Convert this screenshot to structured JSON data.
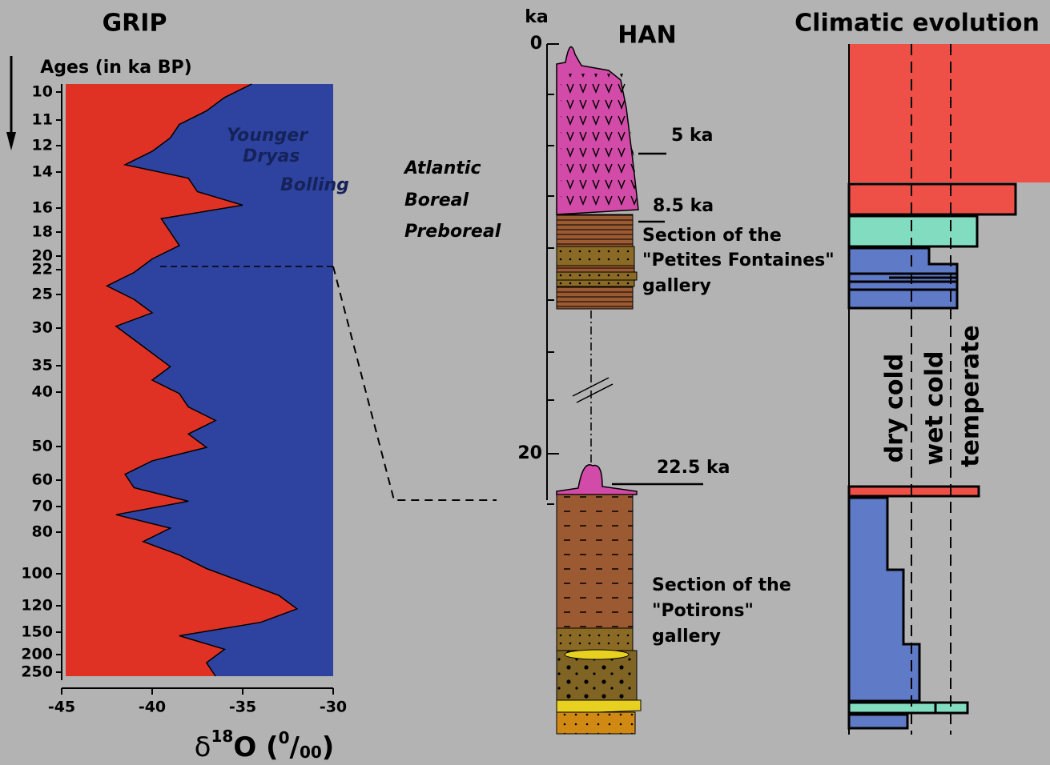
{
  "grip": {
    "title": "GRIP",
    "age_axis_label": "Ages (in ka BP)",
    "age_ticks": [
      10,
      11,
      12,
      14,
      16,
      18,
      20,
      22,
      25,
      30,
      35,
      40,
      50,
      60,
      70,
      80,
      100,
      120,
      150,
      200,
      250
    ],
    "xlim": [
      -45,
      -30
    ],
    "xticks": [
      -45,
      -40,
      -35,
      -30
    ],
    "x_label": {
      "base": "δ",
      "sup": "18",
      "main": "O (",
      "num": "0",
      "sep": "/",
      "den": "00",
      "close": ")"
    },
    "annotations": [
      "Younger",
      "Dryas",
      "Bolling"
    ],
    "colors": {
      "left": "#e03224",
      "right": "#2e43a0"
    },
    "delta18O": [
      -34.5,
      -36,
      -37,
      -38.5,
      -39,
      -40,
      -41.5,
      -38,
      -37.5,
      -35,
      -39.5,
      -39,
      -38.5,
      -40,
      -41,
      -42.5,
      -41,
      -40,
      -42,
      -41,
      -40,
      -39,
      -40,
      -38.5,
      -38,
      -36.5,
      -38,
      -37,
      -40,
      -41.5,
      -41,
      -38,
      -42,
      -39,
      -40.5,
      -38.5,
      -37,
      -35,
      -33,
      -32,
      -34,
      -38.5,
      -36,
      -37,
      -36.5
    ]
  },
  "han": {
    "unit": "ka",
    "ticks": [
      0,
      20
    ],
    "title": "HAN",
    "age_labels": [
      "5 ka",
      "8.5 ka",
      "22.5 ka"
    ],
    "periods": [
      "Atlantic",
      "Boreal",
      "Preboreal"
    ],
    "section_upper": [
      "Section of the",
      "\"Petites Fontaines\"",
      "gallery"
    ],
    "section_lower": [
      "Section of the",
      "\"Potirons\"",
      "gallery"
    ]
  },
  "climate": {
    "title": "Climatic evolution",
    "zones": [
      "dry cold",
      "wet cold",
      "temperate"
    ]
  }
}
